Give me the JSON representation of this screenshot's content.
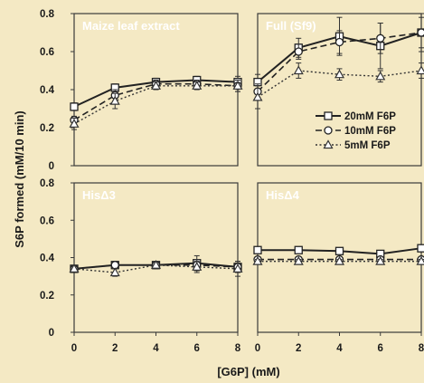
{
  "chart_data": {
    "type": "line",
    "xlabel": "[G6P] (mM)",
    "ylabel": "S6P formed (mM/10 min)",
    "x": [
      0,
      2,
      4,
      6,
      8
    ],
    "xlim": [
      0,
      8
    ],
    "ylim": [
      0,
      0.8
    ],
    "yticks": [
      "0",
      "0.2",
      "0.4",
      "0.6",
      "0.8"
    ],
    "xticks": [
      "0",
      "2",
      "4",
      "6",
      "8"
    ],
    "legend": {
      "placement": "right, Full (Sf9) panel",
      "items": [
        "20mM F6P",
        "10mM F6P",
        "5mM F6P"
      ]
    },
    "panels": [
      {
        "title": "Maize leaf extract",
        "series": [
          {
            "name": "20mM F6P",
            "values": [
              0.31,
              0.41,
              0.44,
              0.45,
              0.44
            ],
            "err": [
              0.02,
              0.02,
              0.02,
              0.02,
              0.03
            ]
          },
          {
            "name": "10mM F6P",
            "values": [
              0.24,
              0.37,
              0.43,
              0.43,
              0.42
            ],
            "err": [
              0.02,
              0.03,
              0.02,
              0.02,
              0.03
            ]
          },
          {
            "name": "5mM F6P",
            "values": [
              0.22,
              0.34,
              0.42,
              0.42,
              0.42
            ],
            "err": [
              0.03,
              0.04,
              0.02,
              0.02,
              0.03
            ]
          }
        ]
      },
      {
        "title": "Full (Sf9)",
        "series": [
          {
            "name": "20mM F6P",
            "values": [
              0.44,
              0.62,
              0.68,
              0.63,
              0.7
            ],
            "err": [
              0.04,
              0.05,
              0.1,
              0.12,
              0.1
            ]
          },
          {
            "name": "10mM F6P",
            "values": [
              0.39,
              0.6,
              0.65,
              0.67,
              0.7
            ],
            "err": [
              0.04,
              0.04,
              0.06,
              0.08,
              0.08
            ]
          },
          {
            "name": "5mM F6P",
            "values": [
              0.36,
              0.5,
              0.48,
              0.47,
              0.5
            ],
            "err": [
              0.06,
              0.04,
              0.03,
              0.03,
              0.04
            ]
          }
        ]
      },
      {
        "title": "HisΔ3",
        "series": [
          {
            "name": "20mM F6P",
            "values": [
              0.34,
              0.36,
              0.36,
              0.37,
              0.35
            ],
            "err": [
              0.01,
              0.02,
              0.02,
              0.04,
              0.03
            ]
          },
          {
            "name": "10mM F6P",
            "values": [
              0.34,
              0.36,
              0.36,
              0.36,
              0.35
            ],
            "err": [
              0.01,
              0.02,
              0.02,
              0.03,
              0.03
            ]
          },
          {
            "name": "5mM F6P",
            "values": [
              0.34,
              0.32,
              0.36,
              0.35,
              0.34
            ],
            "err": [
              0.01,
              0.02,
              0.02,
              0.03,
              0.04
            ]
          }
        ]
      },
      {
        "title": "HisΔ4",
        "series": [
          {
            "name": "20mM F6P",
            "values": [
              0.44,
              0.44,
              0.435,
              0.42,
              0.45
            ],
            "err": [
              0.01,
              0.01,
              0.01,
              0.01,
              0.01
            ]
          },
          {
            "name": "10mM F6P",
            "values": [
              0.39,
              0.39,
              0.39,
              0.39,
              0.39
            ],
            "err": [
              0.01,
              0.01,
              0.01,
              0.01,
              0.01
            ]
          },
          {
            "name": "5mM F6P",
            "values": [
              0.38,
              0.38,
              0.38,
              0.38,
              0.38
            ],
            "err": [
              0.01,
              0.01,
              0.01,
              0.01,
              0.01
            ]
          }
        ]
      }
    ]
  }
}
